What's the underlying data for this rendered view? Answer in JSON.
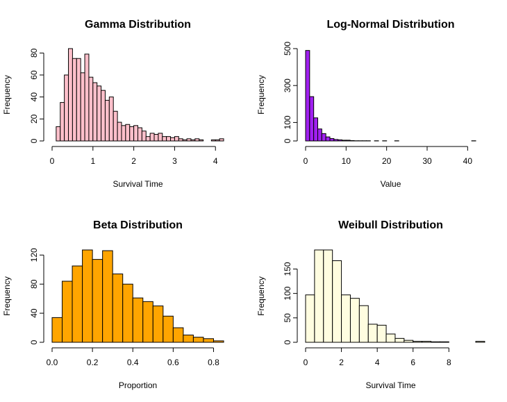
{
  "chart_data": [
    {
      "type": "histogram",
      "title": "Gamma Distribution",
      "xlabel": "Survival Time",
      "ylabel": "Frequency",
      "fill_color": "#ffc0cb",
      "bin_width": 0.1,
      "x_start": 0.1,
      "values": [
        13,
        35,
        60,
        84,
        75,
        75,
        62,
        79,
        58,
        53,
        50,
        46,
        37,
        40,
        27,
        17,
        14,
        15,
        13,
        14,
        12,
        9,
        4,
        7,
        6,
        7,
        4,
        4,
        3,
        4,
        2,
        1,
        2,
        1,
        2,
        1,
        0,
        0,
        1,
        1,
        2,
        0,
        0
      ],
      "xlim": [
        0,
        4.2
      ],
      "ylim": [
        0,
        84
      ],
      "x_ticks": [
        0,
        1,
        2,
        3,
        4
      ],
      "y_ticks": [
        0,
        20,
        40,
        60,
        80
      ]
    },
    {
      "type": "histogram",
      "title": "Log-Normal Distribution",
      "xlabel": "Value",
      "ylabel": "Frequency",
      "fill_color": "#a020f0",
      "bin_width": 1,
      "x_start": 0,
      "values": [
        490,
        240,
        125,
        65,
        40,
        22,
        13,
        8,
        6,
        4,
        4,
        2,
        1,
        1,
        1,
        1,
        0,
        1,
        0,
        1,
        0,
        0,
        1,
        0,
        0,
        0,
        0,
        0,
        0,
        0,
        0,
        0,
        0,
        0,
        0,
        0,
        0,
        0,
        0,
        0,
        0,
        1
      ],
      "xlim": [
        0,
        42
      ],
      "ylim": [
        0,
        500
      ],
      "x_ticks": [
        0,
        10,
        20,
        30,
        40
      ],
      "y_ticks": [
        0,
        100,
        300,
        500
      ]
    },
    {
      "type": "histogram",
      "title": "Beta Distribution",
      "xlabel": "Proportion",
      "ylabel": "Frequency",
      "fill_color": "#ffa500",
      "bin_width": 0.05,
      "x_start": 0,
      "values": [
        34,
        84,
        105,
        127,
        114,
        126,
        94,
        80,
        61,
        56,
        50,
        36,
        20,
        10,
        7,
        5,
        2
      ],
      "xlim": [
        0,
        0.85
      ],
      "ylim": [
        0,
        127
      ],
      "x_ticks": [
        0.0,
        0.2,
        0.4,
        0.6,
        0.8
      ],
      "x_tick_labels": [
        "0.0",
        "0.2",
        "0.4",
        "0.6",
        "0.8"
      ],
      "y_ticks": [
        0,
        40,
        80,
        120
      ]
    },
    {
      "type": "histogram",
      "title": "Weibull Distribution",
      "xlabel": "Survival Time",
      "ylabel": "Frequency",
      "fill_color": "#fffde0",
      "bin_width": 0.5,
      "x_start": 0,
      "values": [
        97,
        189,
        189,
        167,
        97,
        90,
        75,
        37,
        35,
        17,
        8,
        4,
        2,
        2,
        1,
        1,
        0,
        0,
        0,
        2
      ],
      "xlim": [
        0,
        9.5
      ],
      "ylim": [
        0,
        189
      ],
      "x_ticks": [
        0,
        2,
        4,
        6,
        8
      ],
      "y_ticks": [
        0,
        50,
        100,
        150
      ]
    }
  ]
}
